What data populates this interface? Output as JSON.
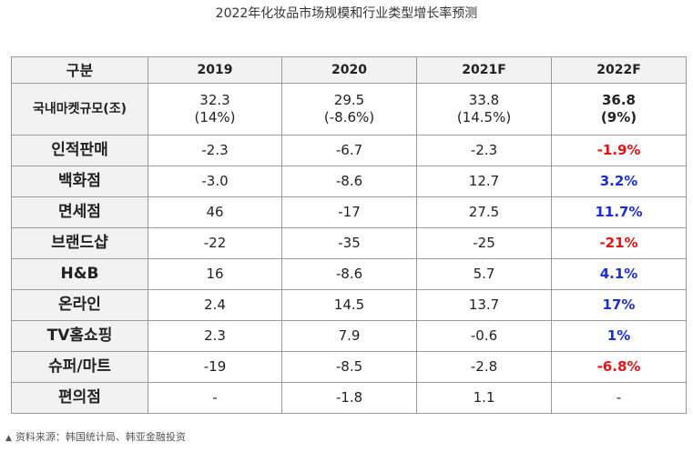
{
  "title": "2022年化妆品市场规模和行业类型增长率预测",
  "table": {
    "columns": [
      "구분",
      "2019",
      "2020",
      "2021F",
      "2022F"
    ],
    "market_row": {
      "label": "국내마켓규모(조)",
      "cells": [
        {
          "value": "32.3",
          "growth": "(14%)"
        },
        {
          "value": "29.5",
          "growth": "(-8.6%)"
        },
        {
          "value": "33.8",
          "growth": "(14.5%)"
        },
        {
          "value": "36.8",
          "growth": "(9%)"
        }
      ]
    },
    "rows": [
      {
        "label": "인적판매",
        "v2019": "-2.3",
        "v2020": "-6.7",
        "v2021": "-2.3",
        "v2022": "-1.9%",
        "v2022_color": "neg"
      },
      {
        "label": "백화점",
        "v2019": "-3.0",
        "v2020": "-8.6",
        "v2021": "12.7",
        "v2022": "3.2%",
        "v2022_color": "pos"
      },
      {
        "label": "면세점",
        "v2019": "46",
        "v2020": "-17",
        "v2021": "27.5",
        "v2022": "11.7%",
        "v2022_color": "pos"
      },
      {
        "label": "브랜드샵",
        "v2019": "-22",
        "v2020": "-35",
        "v2021": "-25",
        "v2022": "-21%",
        "v2022_color": "neg"
      },
      {
        "label": "H&B",
        "v2019": "16",
        "v2020": "-8.6",
        "v2021": "5.7",
        "v2022": "4.1%",
        "v2022_color": "pos"
      },
      {
        "label": "온라인",
        "v2019": "2.4",
        "v2020": "14.5",
        "v2021": "13.7",
        "v2022": "17%",
        "v2022_color": "pos"
      },
      {
        "label": "TV홈쇼핑",
        "v2019": "2.3",
        "v2020": "7.9",
        "v2021": "-0.6",
        "v2022": "1%",
        "v2022_color": "pos"
      },
      {
        "label": "슈퍼/마트",
        "v2019": "-19",
        "v2020": "-8.5",
        "v2021": "-2.8",
        "v2022": "-6.8%",
        "v2022_color": "neg"
      },
      {
        "label": "편의점",
        "v2019": "-",
        "v2020": "-1.8",
        "v2021": "1.1",
        "v2022": "-",
        "v2022_color": "none"
      }
    ],
    "colors": {
      "negative": "#ee1111",
      "positive": "#1a2fd8",
      "header_bg": "#f2f2f2",
      "border": "#9a9a9a"
    }
  },
  "source": {
    "marker": "▲",
    "text": "资料来源：韩国统计局、韩亚金融投资"
  }
}
